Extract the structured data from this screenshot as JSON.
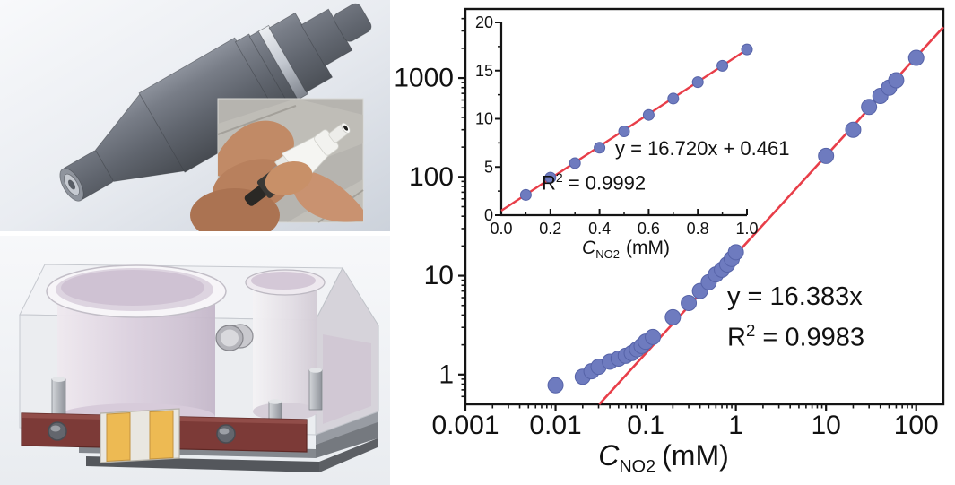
{
  "figure": {
    "description_labels": {}
  },
  "chart_data": {
    "type": "scatter",
    "layout": "log-log calibration plot with linear inset, fit line, no gridlines, no legend",
    "main": {
      "xscale": "log",
      "yscale": "log",
      "xlim": [
        0.001,
        200
      ],
      "ylim": [
        0.5,
        5000
      ],
      "x_ticks": [
        0.001,
        0.01,
        0.1,
        1,
        10,
        100
      ],
      "x_tick_labels": [
        "0.001",
        "0.01",
        "0.1",
        "1",
        "10",
        "100"
      ],
      "y_ticks": [
        1,
        10,
        100,
        1000
      ],
      "y_tick_labels": [
        "1",
        "10",
        "100",
        "1000"
      ],
      "xlabel": {
        "symbol": "C",
        "subscript": "NO2",
        "unit": "(mM)"
      },
      "equation": "y = 16.383x",
      "r_squared": {
        "base": "R",
        "sup": "2",
        "value": " = 0.9983"
      },
      "fit": {
        "slope": 16.383,
        "intercept": 0
      },
      "points": [
        [
          0.01,
          0.78
        ],
        [
          0.02,
          0.95
        ],
        [
          0.025,
          1.08
        ],
        [
          0.03,
          1.2
        ],
        [
          0.04,
          1.35
        ],
        [
          0.05,
          1.45
        ],
        [
          0.06,
          1.55
        ],
        [
          0.07,
          1.65
        ],
        [
          0.08,
          1.8
        ],
        [
          0.09,
          1.95
        ],
        [
          0.1,
          2.15
        ],
        [
          0.12,
          2.4
        ],
        [
          0.2,
          3.8
        ],
        [
          0.3,
          5.3
        ],
        [
          0.4,
          7.0
        ],
        [
          0.5,
          8.6
        ],
        [
          0.6,
          10.3
        ],
        [
          0.7,
          11.5
        ],
        [
          0.8,
          13.0
        ],
        [
          0.9,
          14.8
        ],
        [
          1.0,
          17.3
        ],
        [
          10,
          163
        ],
        [
          20,
          300
        ],
        [
          30,
          510
        ],
        [
          40,
          660
        ],
        [
          50,
          800
        ],
        [
          60,
          950
        ],
        [
          100,
          1600
        ]
      ]
    },
    "inset": {
      "xscale": "linear",
      "yscale": "linear",
      "xlim": [
        0,
        1.0
      ],
      "ylim": [
        0,
        20
      ],
      "x_ticks": [
        0,
        0.2,
        0.4,
        0.6,
        0.8,
        1.0
      ],
      "x_tick_labels": [
        "0.0",
        "0.2",
        "0.4",
        "0.6",
        "0.8",
        "1.0"
      ],
      "x_minor_step": 0.1,
      "y_ticks": [
        0,
        5,
        10,
        15,
        20
      ],
      "y_tick_labels": [
        "0",
        "5",
        "10",
        "15",
        "20"
      ],
      "y_minor_step": 2.5,
      "xlabel": {
        "symbol": "C",
        "subscript": "NO2",
        "unit": "(mM)"
      },
      "equation": "y = 16.720x + 0.461",
      "r_squared": {
        "base": "R",
        "sup": "2",
        "value": " = 0.9992"
      },
      "fit": {
        "slope": 16.72,
        "intercept": 0.461
      },
      "points": [
        [
          0.1,
          2.1
        ],
        [
          0.2,
          3.9
        ],
        [
          0.3,
          5.4
        ],
        [
          0.4,
          7.0
        ],
        [
          0.5,
          8.7
        ],
        [
          0.6,
          10.4
        ],
        [
          0.7,
          12.1
        ],
        [
          0.8,
          13.8
        ],
        [
          0.9,
          15.5
        ],
        [
          1.0,
          17.2
        ]
      ]
    },
    "colors": {
      "point_fill": "#6e7bbf",
      "point_stroke": "#5663a8",
      "fit_line": "#e83e49",
      "axis": "#141414"
    }
  }
}
